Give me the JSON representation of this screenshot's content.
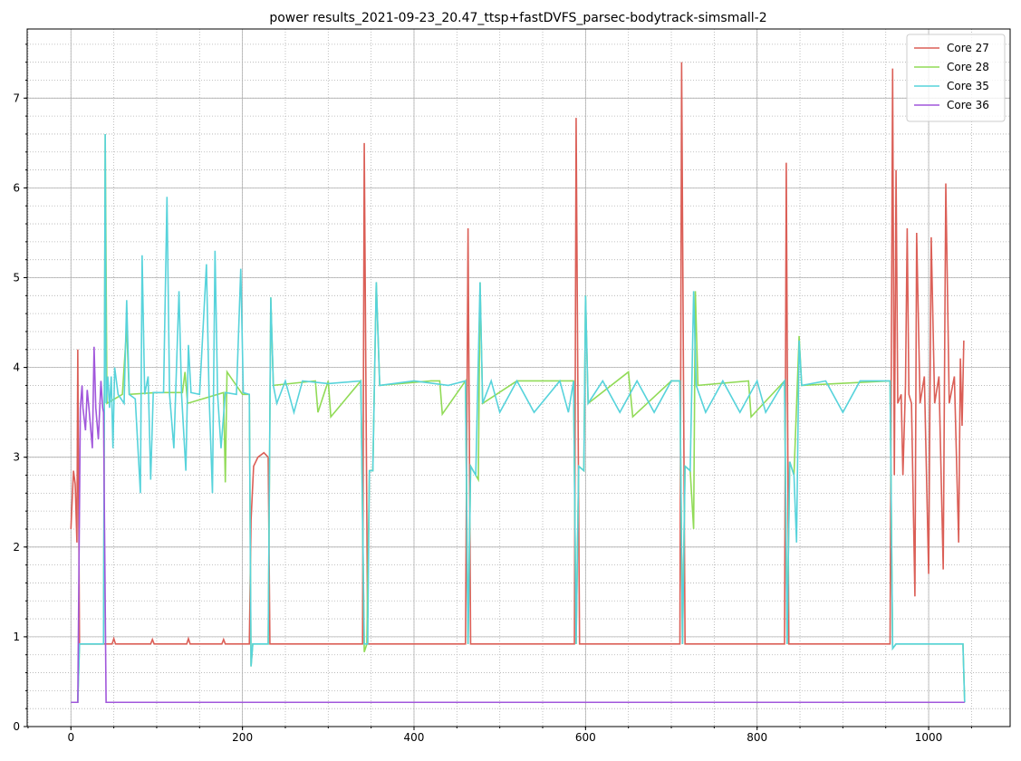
{
  "chart_data": {
    "type": "line",
    "title": "power results_2021-09-23_20.47_ttsp+fastDVFS_parsec-bodytrack-simsmall-2",
    "xlim": [
      -51,
      1095
    ],
    "ylim": [
      0,
      7.77
    ],
    "xticks": [
      0,
      200,
      400,
      600,
      800,
      1000
    ],
    "yticks": [
      0,
      1,
      2,
      3,
      4,
      5,
      6,
      7
    ],
    "grid": true,
    "minor_grid": true,
    "legend": "upper right",
    "series": [
      {
        "name": "Core 27",
        "color": "#db5f57",
        "x": [
          0,
          3,
          5,
          7,
          8,
          10,
          48,
          50,
          52,
          93,
          95,
          97,
          135,
          137,
          139,
          176,
          178,
          180,
          208,
          210,
          213,
          218,
          225,
          230,
          232,
          340,
          342,
          346,
          460,
          463,
          466,
          587,
          589,
          593,
          710,
          712,
          716,
          832,
          834,
          837,
          955,
          958,
          960,
          962,
          964,
          968,
          970,
          973,
          975,
          977,
          980,
          984,
          986,
          990,
          995,
          1000,
          1003,
          1007,
          1012,
          1017,
          1020,
          1024,
          1030,
          1035,
          1037,
          1039,
          1041
        ],
        "values": [
          2.2,
          2.85,
          2.7,
          2.05,
          4.2,
          0.92,
          0.92,
          0.98,
          0.92,
          0.92,
          0.97,
          0.92,
          0.92,
          0.98,
          0.92,
          0.92,
          0.97,
          0.92,
          0.92,
          2.3,
          2.9,
          3.0,
          3.05,
          3.0,
          0.92,
          0.92,
          6.5,
          0.92,
          0.92,
          5.55,
          0.92,
          0.92,
          6.78,
          0.92,
          0.92,
          7.4,
          0.92,
          0.92,
          6.28,
          0.92,
          0.92,
          7.33,
          2.8,
          6.2,
          3.6,
          3.7,
          2.8,
          3.8,
          5.55,
          3.7,
          3.6,
          1.45,
          5.5,
          3.6,
          3.9,
          1.7,
          5.45,
          3.6,
          3.9,
          1.75,
          6.05,
          3.6,
          3.9,
          2.05,
          4.1,
          3.35,
          4.3
        ]
      },
      {
        "name": "Core 28",
        "color": "#91db57",
        "x": [
          0,
          8,
          10,
          38,
          40,
          42,
          60,
          65,
          68,
          100,
          130,
          133,
          136,
          178,
          180,
          182,
          200,
          208,
          210,
          212,
          230,
          233,
          236,
          285,
          288,
          300,
          303,
          338,
          342,
          345,
          348,
          352,
          356,
          360,
          420,
          430,
          433,
          460,
          463,
          466,
          472,
          475,
          477,
          480,
          520,
          586,
          589,
          592,
          598,
          600,
          603,
          650,
          655,
          700,
          710,
          713,
          716,
          722,
          726,
          728,
          731,
          790,
          793,
          832,
          835,
          838,
          843,
          849,
          852,
          955,
          958,
          962,
          1040,
          1042
        ],
        "values": [
          0.27,
          0.27,
          0.92,
          0.92,
          6.6,
          3.6,
          3.7,
          4.45,
          3.7,
          3.72,
          3.72,
          3.95,
          3.6,
          3.72,
          2.72,
          3.95,
          3.7,
          3.7,
          0.67,
          0.92,
          0.92,
          4.78,
          3.8,
          3.85,
          3.5,
          3.85,
          3.45,
          3.85,
          0.83,
          0.92,
          2.85,
          2.85,
          4.95,
          3.8,
          3.85,
          3.85,
          3.48,
          3.85,
          0.92,
          2.9,
          2.8,
          2.75,
          4.95,
          3.6,
          3.85,
          3.85,
          0.92,
          2.9,
          2.85,
          4.8,
          3.6,
          3.95,
          3.45,
          3.85,
          3.85,
          0.92,
          2.9,
          2.85,
          2.2,
          4.85,
          3.8,
          3.85,
          3.45,
          3.85,
          0.92,
          2.95,
          2.8,
          4.35,
          3.8,
          3.85,
          0.87,
          0.92,
          0.92,
          0.27
        ]
      },
      {
        "name": "Core 35",
        "color": "#57d3db",
        "x": [
          0,
          8,
          10,
          38,
          40,
          41,
          43,
          45,
          47,
          49,
          51,
          55,
          62,
          65,
          68,
          75,
          81,
          83,
          86,
          90,
          93,
          96,
          108,
          112,
          115,
          120,
          126,
          129,
          134,
          137,
          140,
          150,
          158,
          161,
          165,
          168,
          171,
          175,
          180,
          193,
          198,
          201,
          208,
          210,
          212,
          230,
          233,
          236,
          240,
          250,
          260,
          270,
          300,
          338,
          342,
          346,
          348,
          352,
          356,
          360,
          400,
          440,
          460,
          463,
          466,
          472,
          477,
          480,
          490,
          500,
          520,
          540,
          570,
          580,
          586,
          589,
          592,
          598,
          600,
          603,
          620,
          640,
          660,
          680,
          700,
          710,
          713,
          716,
          722,
          726,
          729,
          740,
          760,
          780,
          800,
          810,
          832,
          835,
          838,
          843,
          846,
          849,
          852,
          880,
          900,
          920,
          955,
          958,
          962,
          1040,
          1042
        ],
        "values": [
          0.27,
          0.27,
          0.92,
          0.92,
          6.6,
          3.6,
          3.9,
          3.55,
          3.9,
          3.1,
          4.0,
          3.7,
          3.6,
          4.75,
          3.7,
          3.65,
          2.6,
          5.25,
          3.7,
          3.9,
          2.75,
          3.72,
          3.72,
          5.9,
          3.7,
          3.1,
          4.85,
          3.7,
          2.85,
          4.25,
          3.72,
          3.7,
          5.15,
          3.72,
          2.6,
          5.3,
          3.7,
          3.1,
          3.72,
          3.7,
          5.1,
          3.72,
          3.7,
          0.67,
          0.92,
          0.92,
          4.78,
          3.8,
          3.6,
          3.85,
          3.5,
          3.85,
          3.82,
          3.85,
          0.92,
          0.92,
          2.85,
          2.85,
          4.95,
          3.8,
          3.85,
          3.8,
          3.85,
          0.92,
          2.9,
          2.8,
          4.95,
          3.6,
          3.85,
          3.5,
          3.85,
          3.5,
          3.85,
          3.5,
          3.85,
          0.92,
          2.9,
          2.85,
          4.8,
          3.6,
          3.85,
          3.5,
          3.85,
          3.5,
          3.85,
          3.85,
          0.92,
          2.9,
          2.85,
          4.85,
          3.8,
          3.5,
          3.85,
          3.5,
          3.85,
          3.5,
          3.85,
          0.92,
          2.95,
          2.8,
          2.05,
          4.3,
          3.8,
          3.85,
          3.5,
          3.85,
          3.85,
          0.87,
          0.92,
          0.92,
          0.27
        ]
      },
      {
        "name": "Core 36",
        "color": "#a157db",
        "x": [
          0,
          8,
          11,
          13,
          14,
          17,
          19,
          21,
          25,
          27,
          29,
          32,
          35,
          37,
          38,
          41,
          1042
        ],
        "values": [
          0.27,
          0.27,
          3.55,
          3.8,
          3.55,
          3.3,
          3.75,
          3.55,
          3.1,
          4.23,
          3.55,
          3.2,
          3.85,
          3.55,
          3.5,
          0.27,
          0.27
        ]
      }
    ]
  }
}
